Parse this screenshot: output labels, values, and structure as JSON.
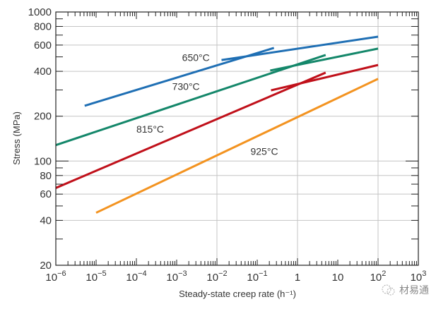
{
  "chart_data": {
    "type": "line",
    "title": "",
    "xlabel": "Steady-state creep rate (h⁻¹)",
    "ylabel": "Stress (MPa)",
    "xscale": "log",
    "yscale": "log",
    "xlim": [
      1e-06,
      1000.0
    ],
    "ylim": [
      20,
      1000
    ],
    "grid": true,
    "x_tick_labels": [
      {
        "value": 1e-06,
        "base": "10",
        "exp": "−6"
      },
      {
        "value": 1e-05,
        "base": "10",
        "exp": "−5"
      },
      {
        "value": 0.0001,
        "base": "10",
        "exp": "−4"
      },
      {
        "value": 0.001,
        "base": "10",
        "exp": "−3"
      },
      {
        "value": 0.01,
        "base": "10",
        "exp": "−2"
      },
      {
        "value": 0.1,
        "base": "10",
        "exp": "−1"
      },
      {
        "value": 1,
        "base": "1",
        "exp": ""
      },
      {
        "value": 10,
        "base": "10",
        "exp": ""
      },
      {
        "value": 100,
        "base": "10",
        "exp": "2"
      },
      {
        "value": 1000,
        "base": "10",
        "exp": "3"
      }
    ],
    "y_tick_labels": [
      "20",
      "40",
      "60",
      "80",
      "100",
      "200",
      "400",
      "600",
      "800",
      "1000"
    ],
    "series": [
      {
        "name": "650°C",
        "color": "#1f6fb4",
        "segments": [
          {
            "x": [
              5.2e-06,
              0.26
            ],
            "y": [
              235,
              574
            ]
          },
          {
            "x": [
              0.013,
              100
            ],
            "y": [
              476,
              683
            ]
          }
        ]
      },
      {
        "name": "730°C",
        "color": "#14876a",
        "segments": [
          {
            "x": [
              1e-06,
              5
            ],
            "y": [
              128,
              515
            ]
          },
          {
            "x": [
              0.21,
              100
            ],
            "y": [
              405,
              568
            ]
          }
        ]
      },
      {
        "name": "815°C",
        "color": "#c0101a",
        "segments": [
          {
            "x": [
              1e-06,
              5
            ],
            "y": [
              66,
              392
            ]
          },
          {
            "x": [
              0.22,
              100
            ],
            "y": [
              298,
              441
            ]
          }
        ]
      },
      {
        "name": "925°C",
        "color": "#f39320",
        "segments": [
          {
            "x": [
              1e-05,
              100
            ],
            "y": [
              45,
              356
            ]
          }
        ]
      }
    ],
    "annotations": [
      {
        "text": "650°C",
        "x": 0.003,
        "y": 470
      },
      {
        "text": "730°C",
        "x": 0.0017,
        "y": 300
      },
      {
        "text": "815°C",
        "x": 0.00022,
        "y": 155
      },
      {
        "text": "925°C",
        "x": 0.15,
        "y": 110
      }
    ]
  },
  "watermark": {
    "text": "材易通",
    "icon": "wechat-icon"
  }
}
